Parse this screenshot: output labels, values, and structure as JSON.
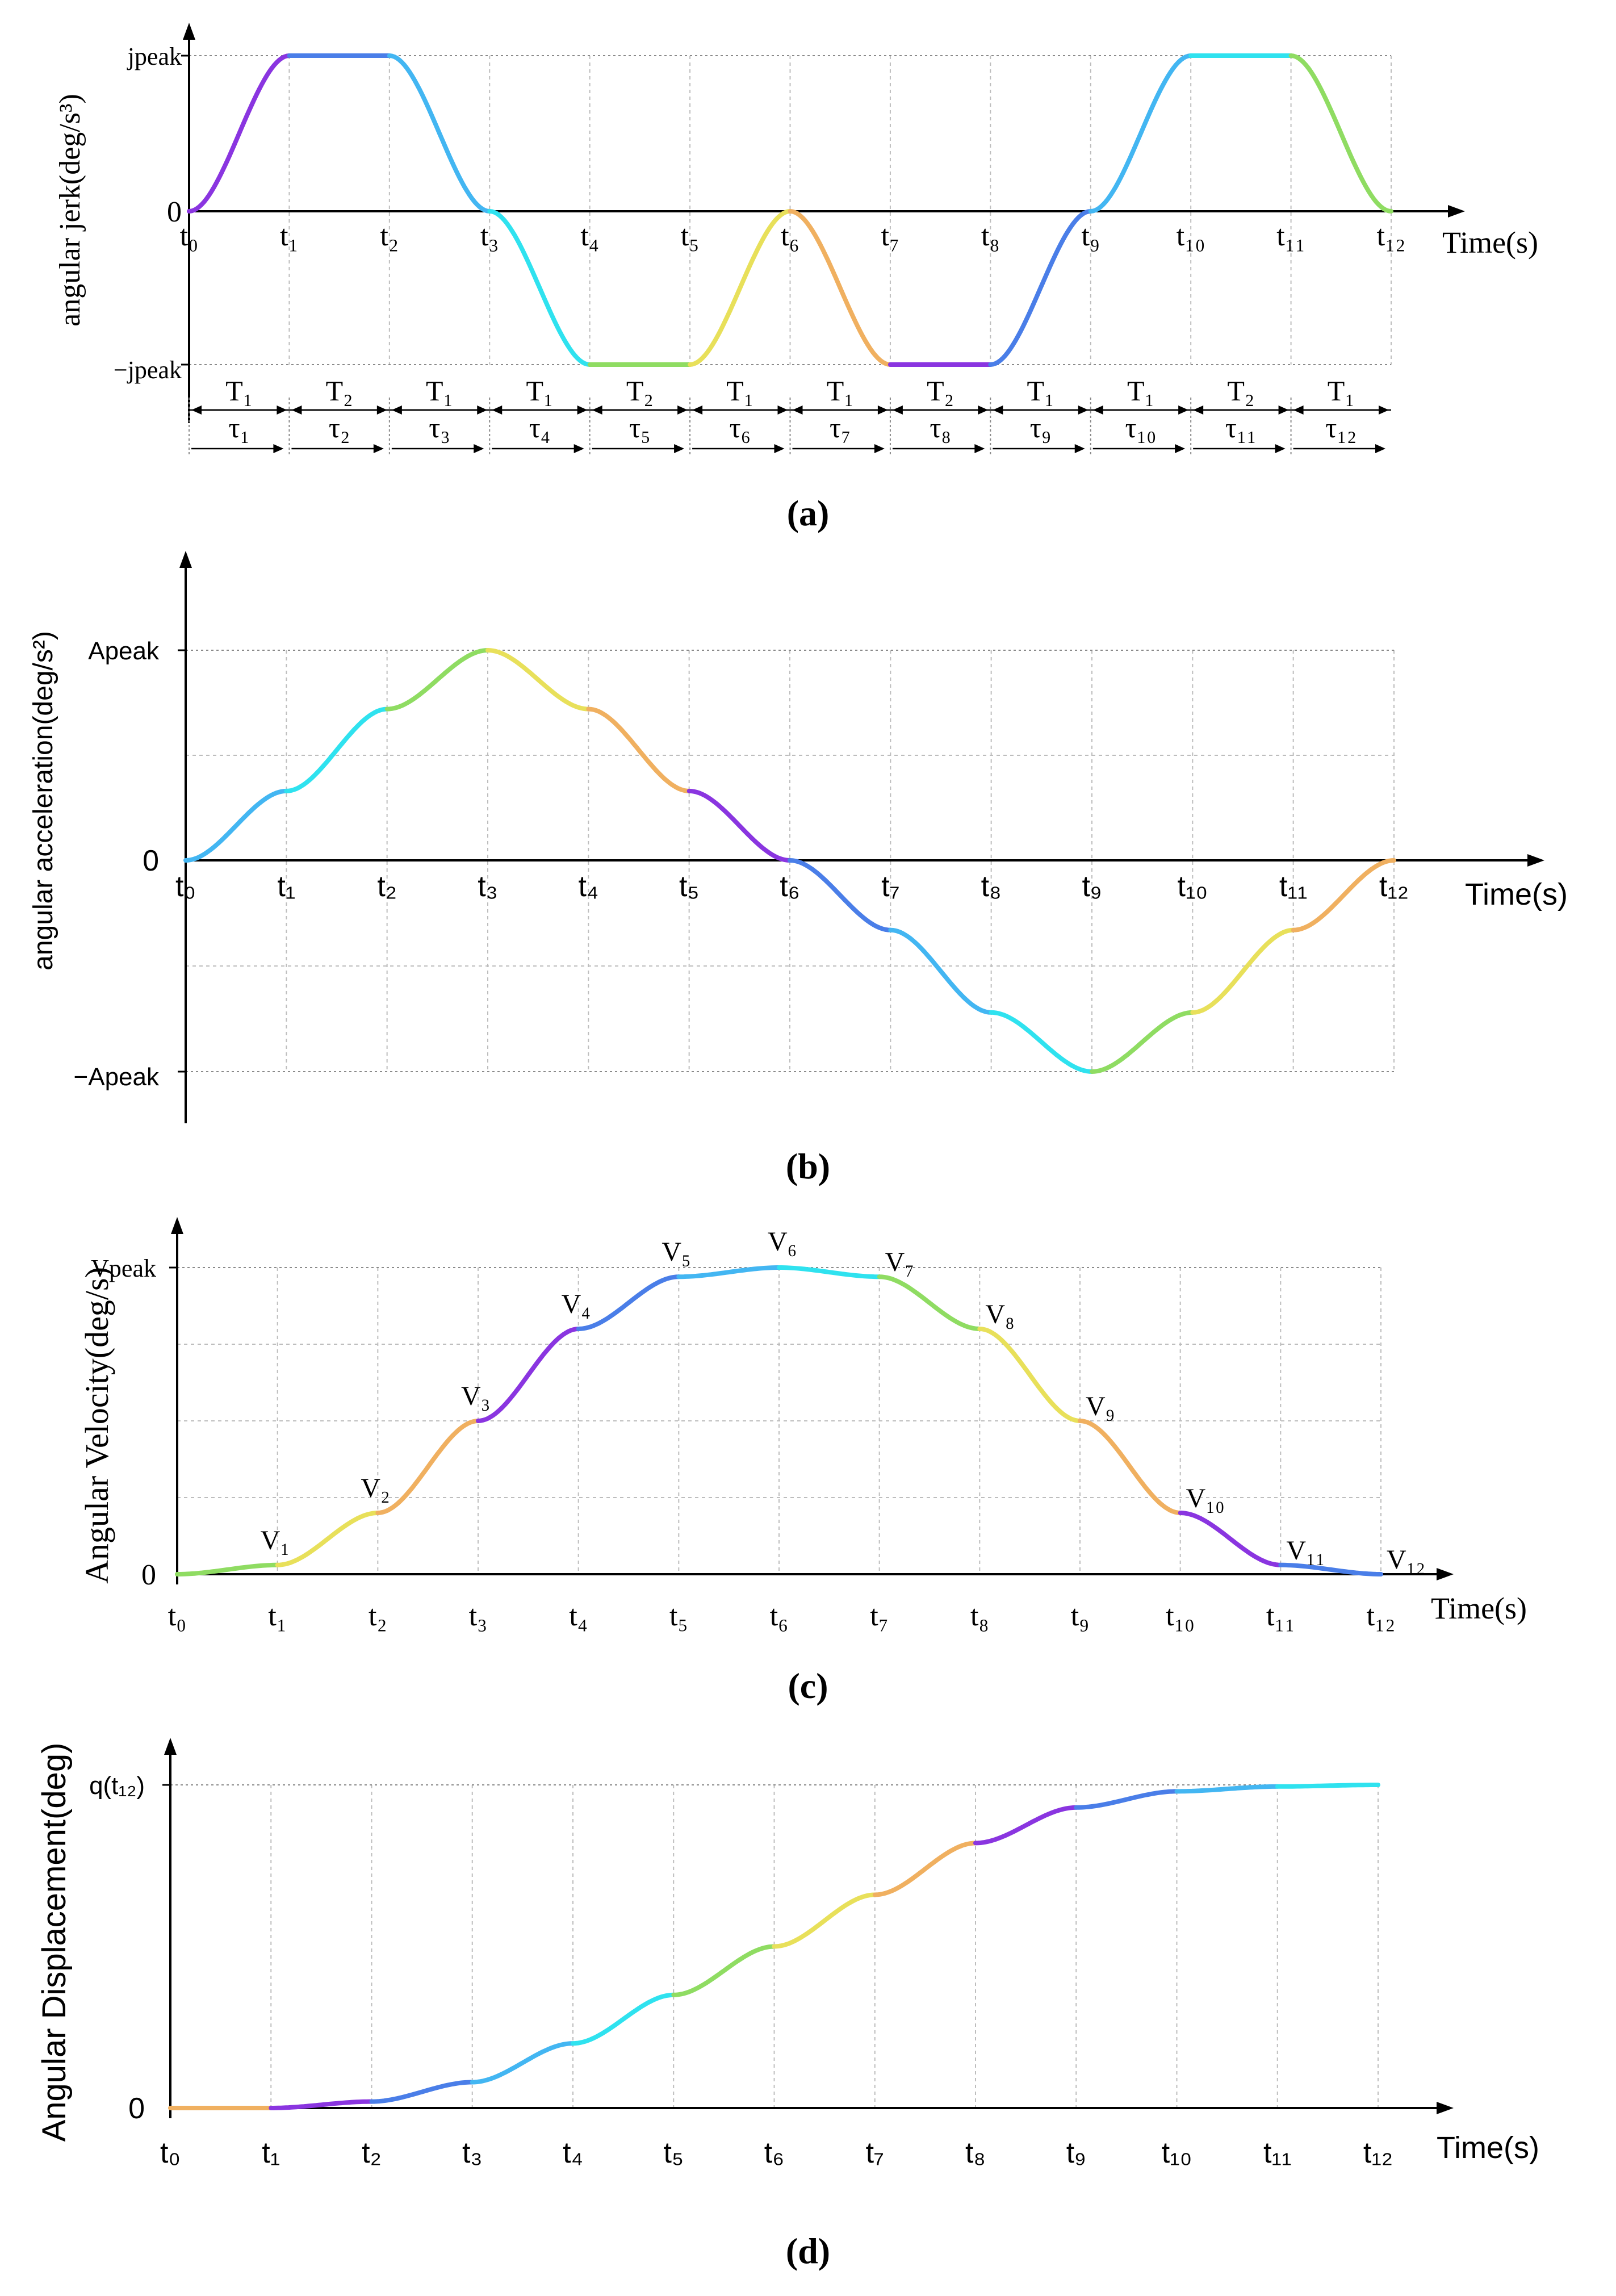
{
  "chart_data": [
    {
      "id": "a",
      "type": "line",
      "caption": "(a)",
      "ylabel": "angular jerk(deg/s³)",
      "xlabel": "Time(s)",
      "y_ticks": {
        "peak": "jpeak",
        "zero": "0",
        "neg": "−jpeak"
      },
      "x_ticks": [
        "t₀",
        "t₁",
        "t₂",
        "t₃",
        "t₄",
        "t₅",
        "t₆",
        "t₇",
        "t₈",
        "t₉",
        "t₁₀",
        "t₁₁",
        "t₁₂"
      ],
      "segment_T": [
        "T₁",
        "T₂",
        "T₁",
        "T₁",
        "T₂",
        "T₁",
        "T₁",
        "T₂",
        "T₁",
        "T₁",
        "T₂",
        "T₁"
      ],
      "segment_tau": [
        "τ₁",
        "τ₂",
        "τ₃",
        "τ₄",
        "τ₅",
        "τ₆",
        "τ₇",
        "τ₈",
        "τ₉",
        "τ₁₀",
        "τ₁₁",
        "τ₁₂"
      ],
      "series": [
        {
          "name": "jerk",
          "x": [
            0,
            1,
            2,
            3,
            4,
            5,
            6,
            7,
            8,
            9,
            10,
            11,
            12
          ],
          "values": [
            0,
            1,
            1,
            0,
            -1,
            -1,
            0,
            -1,
            -1,
            0,
            1,
            1,
            0
          ]
        }
      ],
      "ylim": [
        -1,
        1
      ],
      "xlim": [
        0,
        12
      ]
    },
    {
      "id": "b",
      "type": "line",
      "caption": "(b)",
      "ylabel": "angular acceleration(deg/s²)",
      "xlabel": "Time(s)",
      "y_ticks": {
        "peak": "Apeak",
        "zero": "0",
        "neg": "−Apeak"
      },
      "x_ticks": [
        "t₀",
        "t₁",
        "t₂",
        "t₃",
        "t₄",
        "t₅",
        "t₆",
        "t₇",
        "t₈",
        "t₉",
        "t₁₀",
        "t₁₁",
        "t₁₂"
      ],
      "series": [
        {
          "name": "acceleration",
          "x": [
            0,
            1,
            2,
            3,
            4,
            5,
            6,
            7,
            8,
            9,
            10,
            11,
            12
          ],
          "values": [
            0,
            0.33,
            0.72,
            1,
            0.72,
            0.33,
            0,
            -0.33,
            -0.72,
            -1,
            -0.72,
            -0.33,
            0
          ]
        }
      ],
      "ylim": [
        -1,
        1
      ],
      "xlim": [
        0,
        12
      ]
    },
    {
      "id": "c",
      "type": "line",
      "caption": "(c)",
      "ylabel": "Angular Velocity(deg/s)",
      "xlabel": "Time(s)",
      "y_ticks": {
        "peak": "Vpeak",
        "zero": "0"
      },
      "x_ticks": [
        "t₀",
        "t₁",
        "t₂",
        "t₃",
        "t₄",
        "t₅",
        "t₆",
        "t₇",
        "t₈",
        "t₉",
        "t₁₀",
        "t₁₁",
        "t₁₂"
      ],
      "point_labels": [
        "V₁",
        "V₂",
        "V₃",
        "V₄",
        "V₅",
        "V₆",
        "V₇",
        "V₈",
        "V₉",
        "V₁₀",
        "V₁₁",
        "V₁₂"
      ],
      "series": [
        {
          "name": "velocity",
          "x": [
            0,
            1,
            2,
            3,
            4,
            5,
            6,
            7,
            8,
            9,
            10,
            11,
            12
          ],
          "values": [
            0,
            0.03,
            0.2,
            0.5,
            0.8,
            0.97,
            1,
            0.97,
            0.8,
            0.5,
            0.2,
            0.03,
            0
          ]
        }
      ],
      "ylim": [
        0,
        1
      ],
      "xlim": [
        0,
        12
      ]
    },
    {
      "id": "d",
      "type": "line",
      "caption": "(d)",
      "ylabel": "Angular Displacement(deg)",
      "xlabel": "Time(s)",
      "y_ticks": {
        "peak": "q(t₁₂)",
        "zero": "0"
      },
      "x_ticks": [
        "t₀",
        "t₁",
        "t₂",
        "t₃",
        "t₄",
        "t₅",
        "t₆",
        "t₇",
        "t₈",
        "t₉",
        "t₁₀",
        "t₁₁",
        "t₁₂"
      ],
      "series": [
        {
          "name": "displacement",
          "x": [
            0,
            1,
            2,
            3,
            4,
            5,
            6,
            7,
            8,
            9,
            10,
            11,
            12
          ],
          "values": [
            0,
            0,
            0.02,
            0.08,
            0.2,
            0.35,
            0.5,
            0.66,
            0.82,
            0.93,
            0.98,
            0.995,
            1
          ]
        }
      ],
      "ylim": [
        0,
        1
      ],
      "xlim": [
        0,
        12
      ]
    }
  ],
  "colors": {
    "palette": [
      "#8a35e0",
      "#4a7ee8",
      "#43b6f2",
      "#2fe2ef",
      "#8fdc62",
      "#e8e05a",
      "#f0b060"
    ]
  }
}
